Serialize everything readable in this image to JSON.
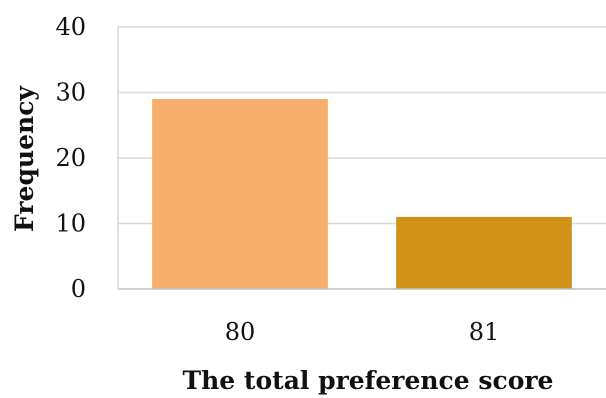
{
  "chart_data": {
    "type": "bar",
    "categories": [
      "80",
      "81"
    ],
    "values": [
      29,
      11
    ],
    "colors": [
      "#f5ae6b",
      "#d09317"
    ],
    "xlabel": "The total preference score",
    "ylabel": "Frequency",
    "ylim": [
      0,
      40
    ],
    "yticks": [
      "0",
      "10",
      "20",
      "30",
      "40"
    ],
    "grid": "horizontal"
  }
}
